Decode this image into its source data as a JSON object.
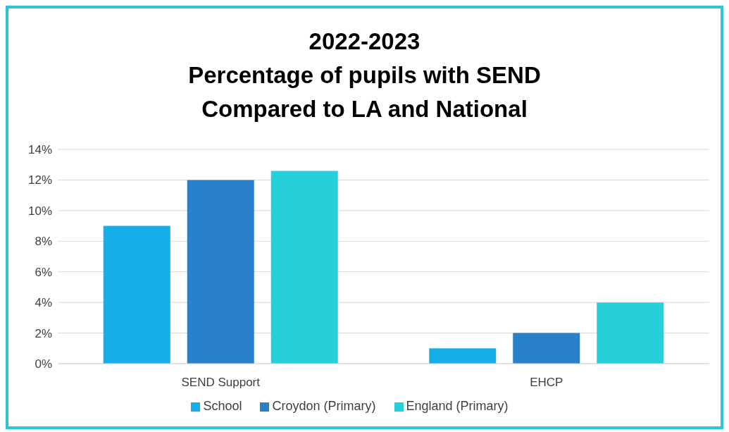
{
  "chart_data": {
    "type": "bar",
    "title": "2022-2023\nPercentage of pupils with SEND\nCompared to LA and National",
    "categories": [
      "SEND Support",
      "EHCP"
    ],
    "series": [
      {
        "name": "School",
        "color": "#17ade8",
        "values": [
          9.0,
          1.0
        ]
      },
      {
        "name": "Croydon (Primary)",
        "color": "#2a80c8",
        "values": [
          12.0,
          2.0
        ]
      },
      {
        "name": "England (Primary)",
        "color": "#26d0da",
        "values": [
          12.6,
          4.0
        ]
      }
    ],
    "ylim": [
      0,
      14
    ],
    "yticks": [
      {
        "value": 0,
        "label": "0%"
      },
      {
        "value": 2,
        "label": "2%"
      },
      {
        "value": 4,
        "label": "4%"
      },
      {
        "value": 6,
        "label": "6%"
      },
      {
        "value": 8,
        "label": "8%"
      },
      {
        "value": 10,
        "label": "10%"
      },
      {
        "value": 12,
        "label": "12%"
      },
      {
        "value": 14,
        "label": "14%"
      }
    ],
    "grid": "y",
    "legend": "bottom"
  }
}
